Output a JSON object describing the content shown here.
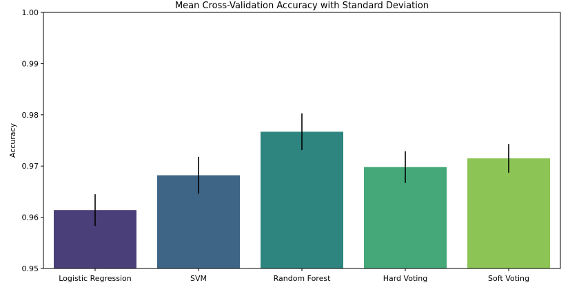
{
  "chart_data": {
    "type": "bar",
    "title": "Mean Cross-Validation Accuracy with Standard Deviation",
    "xlabel": "",
    "ylabel": "Accuracy",
    "ylim": [
      0.95,
      1.0
    ],
    "yticks": [
      0.95,
      0.96,
      0.97,
      0.98,
      0.99,
      1.0
    ],
    "ytick_labels": [
      "0.95",
      "0.96",
      "0.97",
      "0.98",
      "0.99",
      "1.00"
    ],
    "categories": [
      "Logistic Regression",
      "SVM",
      "Random Forest",
      "Hard Voting",
      "Soft Voting"
    ],
    "values": [
      0.9614,
      0.9682,
      0.9767,
      0.9698,
      0.9715
    ],
    "errors": [
      0.0031,
      0.0036,
      0.0036,
      0.0031,
      0.0028
    ],
    "colors": [
      "#4a3f78",
      "#3e6585",
      "#2e8580",
      "#45a878",
      "#8cc455"
    ],
    "grid": false,
    "legend": "none"
  }
}
